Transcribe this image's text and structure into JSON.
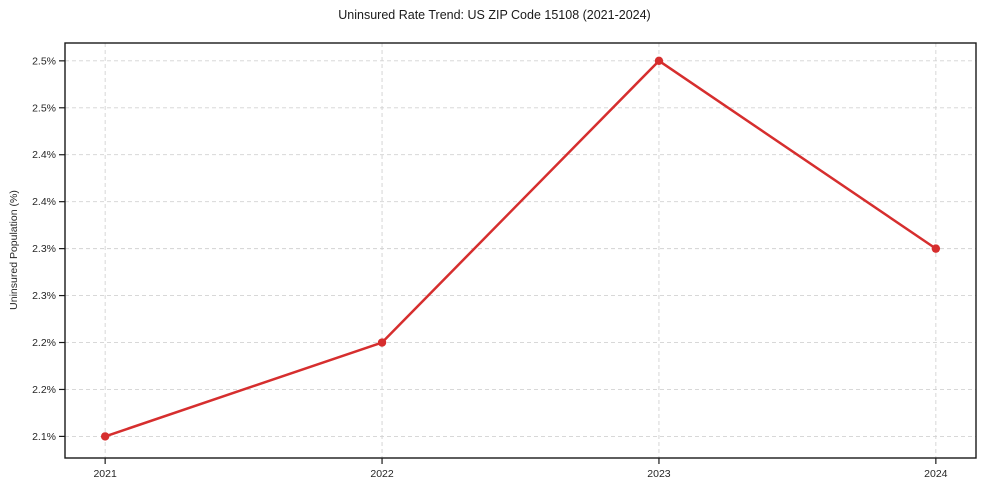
{
  "chart_data": {
    "type": "line",
    "title": "Uninsured Rate Trend: US ZIP Code 15108 (2021-2024)",
    "xlabel": "",
    "ylabel": "Uninsured Population (%)",
    "x": [
      2021,
      2022,
      2023,
      2024
    ],
    "values": [
      2.1,
      2.2,
      2.5,
      2.3
    ],
    "xlim": [
      2020.855,
      2024.145
    ],
    "ylim": [
      2.077,
      2.519
    ],
    "xticks": [
      {
        "v": 2021,
        "label": "2021"
      },
      {
        "v": 2022,
        "label": "2022"
      },
      {
        "v": 2023,
        "label": "2023"
      },
      {
        "v": 2024,
        "label": "2024"
      }
    ],
    "yticks": [
      {
        "v": 2.5,
        "label": "2.5%"
      },
      {
        "v": 2.45,
        "label": "2.5%"
      },
      {
        "v": 2.4,
        "label": "2.4%"
      },
      {
        "v": 2.35,
        "label": "2.4%"
      },
      {
        "v": 2.3,
        "label": "2.3%"
      },
      {
        "v": 2.25,
        "label": "2.3%"
      },
      {
        "v": 2.2,
        "label": "2.2%"
      },
      {
        "v": 2.15,
        "label": "2.2%"
      },
      {
        "v": 2.1,
        "label": "2.1%"
      }
    ],
    "grid": true,
    "grid_style": "dashed",
    "legend": "none",
    "colors": {
      "line": "#d62e2e",
      "marker": "#d62e2e",
      "grid": "#d2d2d2",
      "spine": "#1a1a1a",
      "text": "#262626",
      "background": "#ffffff"
    }
  }
}
